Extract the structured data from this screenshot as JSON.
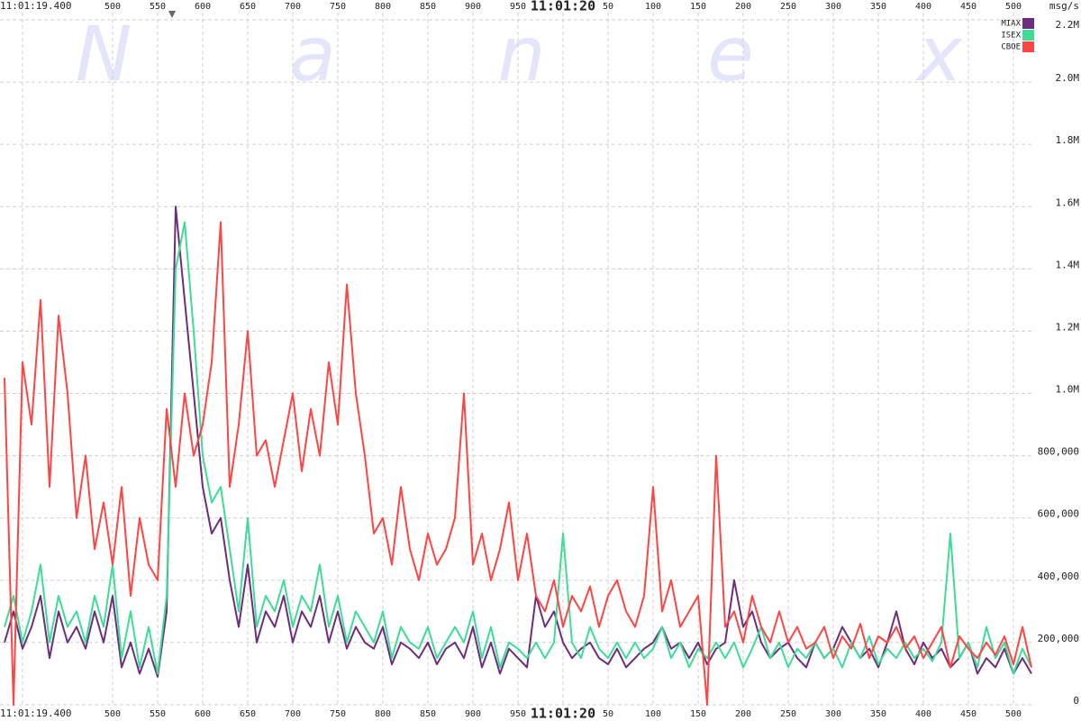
{
  "chart_data": {
    "type": "line",
    "y_axis_label": "msg/s",
    "watermark": [
      "N",
      "a",
      "n",
      "e",
      "x"
    ],
    "x": [
      380,
      390,
      400,
      410,
      420,
      430,
      440,
      450,
      460,
      470,
      480,
      490,
      500,
      510,
      520,
      530,
      540,
      550,
      560,
      570,
      580,
      590,
      600,
      610,
      620,
      630,
      640,
      650,
      660,
      670,
      680,
      690,
      700,
      710,
      720,
      730,
      740,
      750,
      760,
      770,
      780,
      790,
      800,
      810,
      820,
      830,
      840,
      850,
      860,
      870,
      880,
      890,
      900,
      910,
      920,
      930,
      940,
      950,
      960,
      970,
      980,
      990,
      1000,
      1010,
      1020,
      1030,
      1040,
      1050,
      1060,
      1070,
      1080,
      1090,
      1100,
      1110,
      1120,
      1130,
      1140,
      1150,
      1160,
      1170,
      1180,
      1190,
      1200,
      1210,
      1220,
      1230,
      1240,
      1250,
      1260,
      1270,
      1280,
      1290,
      1300,
      1310,
      1320,
      1330,
      1340,
      1350,
      1360,
      1370,
      1380,
      1390,
      1400,
      1410,
      1420,
      1430,
      1440,
      1450,
      1460,
      1470,
      1480,
      1490,
      1500,
      1510,
      1520
    ],
    "series": [
      {
        "name": "MIAX",
        "color": "#6b2d7d",
        "values": [
          200000,
          300000,
          180000,
          250000,
          350000,
          150000,
          300000,
          200000,
          250000,
          180000,
          300000,
          200000,
          350000,
          120000,
          200000,
          100000,
          180000,
          90000,
          300000,
          1600000,
          1300000,
          1000000,
          700000,
          550000,
          600000,
          400000,
          250000,
          450000,
          200000,
          300000,
          250000,
          350000,
          200000,
          300000,
          250000,
          350000,
          200000,
          300000,
          180000,
          250000,
          200000,
          180000,
          250000,
          130000,
          200000,
          180000,
          150000,
          200000,
          130000,
          180000,
          200000,
          150000,
          250000,
          120000,
          200000,
          100000,
          180000,
          150000,
          120000,
          350000,
          250000,
          300000,
          200000,
          150000,
          180000,
          200000,
          150000,
          130000,
          180000,
          120000,
          150000,
          180000,
          200000,
          250000,
          180000,
          200000,
          150000,
          200000,
          130000,
          180000,
          200000,
          400000,
          250000,
          300000,
          200000,
          150000,
          180000,
          200000,
          150000,
          120000,
          200000,
          150000,
          180000,
          250000,
          200000,
          150000,
          180000,
          120000,
          200000,
          300000,
          180000,
          130000,
          200000,
          150000,
          180000,
          120000,
          150000,
          200000,
          100000,
          150000,
          120000,
          180000,
          100000,
          150000,
          100000
        ]
      },
      {
        "name": "ISEX",
        "color": "#3ddc97",
        "values": [
          250000,
          350000,
          200000,
          300000,
          450000,
          200000,
          350000,
          250000,
          300000,
          200000,
          350000,
          250000,
          450000,
          150000,
          300000,
          120000,
          250000,
          100000,
          350000,
          1400000,
          1550000,
          1200000,
          800000,
          650000,
          700000,
          500000,
          300000,
          600000,
          250000,
          350000,
          300000,
          400000,
          250000,
          350000,
          300000,
          450000,
          250000,
          350000,
          200000,
          300000,
          250000,
          200000,
          300000,
          150000,
          250000,
          200000,
          180000,
          250000,
          150000,
          200000,
          250000,
          200000,
          300000,
          150000,
          250000,
          120000,
          200000,
          180000,
          150000,
          200000,
          150000,
          200000,
          550000,
          200000,
          150000,
          250000,
          180000,
          150000,
          200000,
          150000,
          200000,
          150000,
          180000,
          250000,
          150000,
          200000,
          120000,
          180000,
          150000,
          200000,
          150000,
          200000,
          120000,
          180000,
          250000,
          150000,
          200000,
          120000,
          180000,
          150000,
          200000,
          150000,
          180000,
          120000,
          200000,
          150000,
          220000,
          130000,
          180000,
          150000,
          200000,
          150000,
          180000,
          140000,
          200000,
          550000,
          150000,
          200000,
          120000,
          250000,
          150000,
          200000,
          100000,
          180000,
          120000
        ]
      },
      {
        "name": "CBOE",
        "color": "#ff4444",
        "values": [
          1050000,
          0,
          1100000,
          900000,
          1300000,
          700000,
          1250000,
          1000000,
          600000,
          800000,
          500000,
          650000,
          450000,
          700000,
          350000,
          600000,
          450000,
          400000,
          950000,
          700000,
          1000000,
          800000,
          900000,
          1100000,
          1550000,
          700000,
          900000,
          1200000,
          800000,
          850000,
          700000,
          850000,
          1000000,
          750000,
          950000,
          800000,
          1100000,
          900000,
          1350000,
          1000000,
          800000,
          550000,
          600000,
          450000,
          700000,
          500000,
          400000,
          550000,
          450000,
          500000,
          600000,
          1000000,
          450000,
          550000,
          400000,
          500000,
          650000,
          400000,
          550000,
          350000,
          300000,
          400000,
          250000,
          350000,
          300000,
          380000,
          250000,
          350000,
          400000,
          300000,
          250000,
          350000,
          700000,
          300000,
          400000,
          250000,
          300000,
          350000,
          0,
          800000,
          250000,
          300000,
          200000,
          350000,
          250000,
          200000,
          300000,
          200000,
          250000,
          180000,
          200000,
          250000,
          150000,
          220000,
          180000,
          260000,
          150000,
          220000,
          200000,
          250000,
          180000,
          220000,
          150000,
          200000,
          250000,
          120000,
          220000,
          180000,
          150000,
          200000,
          160000,
          220000,
          130000,
          250000,
          120000
        ]
      }
    ],
    "xlim": [
      375,
      1522
    ],
    "xticks": [
      {
        "value": 400,
        "label": "11:01:19.400"
      },
      500,
      550,
      600,
      650,
      700,
      750,
      800,
      850,
      900,
      950,
      {
        "value": 1000,
        "label": "11:01:20"
      },
      {
        "value": 1050,
        "label": "50"
      },
      {
        "value": 1100,
        "label": "100"
      },
      {
        "value": 1150,
        "label": "150"
      },
      {
        "value": 1200,
        "label": "200"
      },
      {
        "value": 1250,
        "label": "250"
      },
      {
        "value": 1300,
        "label": "300"
      },
      {
        "value": 1350,
        "label": "350"
      },
      {
        "value": 1400,
        "label": "400"
      },
      {
        "value": 1450,
        "label": "450"
      },
      {
        "value": 1500,
        "label": "500"
      }
    ],
    "ylim": [
      0,
      2200000
    ],
    "yticks": [
      0,
      {
        "value": 200000,
        "label": "200,000"
      },
      {
        "value": 400000,
        "label": "400,000"
      },
      {
        "value": 600000,
        "label": "600,000"
      },
      {
        "value": 800000,
        "label": "800,000"
      },
      {
        "value": 1000000,
        "label": "1.0M"
      },
      {
        "value": 1200000,
        "label": "1.2M"
      },
      {
        "value": 1400000,
        "label": "1.4M"
      },
      {
        "value": 1600000,
        "label": "1.6M"
      },
      {
        "value": 1800000,
        "label": "1.8M"
      },
      {
        "value": 2000000,
        "label": "2.0M"
      },
      {
        "value": 2200000,
        "label": "2.2M"
      }
    ],
    "grid": true,
    "legend": "top-right"
  }
}
